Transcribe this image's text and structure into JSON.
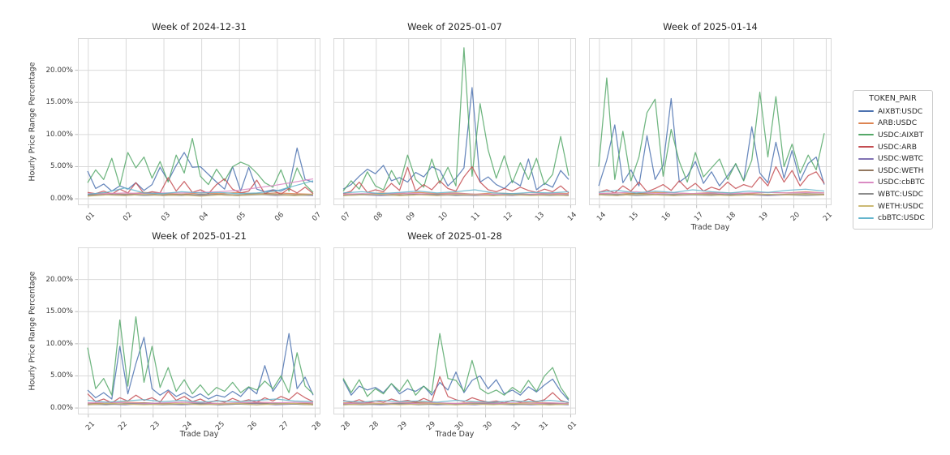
{
  "figure": {
    "background": "#ffffff",
    "ylabel": "Hourly Price Range Percentage",
    "xlabel": "Trade Day",
    "legend_title": "TOKEN_PAIR",
    "grid": true,
    "grid_color": "#d9d9d9",
    "ylim": [
      -1,
      25
    ],
    "yticks": {
      "values": [
        0,
        5,
        10,
        15,
        20
      ],
      "labels": [
        "0.00%",
        "5.00%",
        "10.00%",
        "15.00%",
        "20.00%"
      ]
    }
  },
  "tokens": [
    {
      "label": "AIXBT:USDC",
      "color": "#4c72b0"
    },
    {
      "label": "ARB:USDC",
      "color": "#dd8452"
    },
    {
      "label": "USDC:AIXBT",
      "color": "#55a868"
    },
    {
      "label": "USDC:ARB",
      "color": "#c44e52"
    },
    {
      "label": "USDC:WBTC",
      "color": "#8172b3"
    },
    {
      "label": "USDC:WETH",
      "color": "#937860"
    },
    {
      "label": "USDC:cbBTC",
      "color": "#da8bc3"
    },
    {
      "label": "WBTC:USDC",
      "color": "#8c8c8c"
    },
    {
      "label": "WETH:USDC",
      "color": "#ccb974"
    },
    {
      "label": "cbBTC:USDC",
      "color": "#64b5cd"
    }
  ],
  "chart_data": [
    {
      "type": "line",
      "title": "Week of 2024-12-31",
      "x_ticklabels": [
        "01",
        "02",
        "03",
        "04",
        "05",
        "06",
        "07"
      ],
      "show_yticklabels": true,
      "show_xlabel": false,
      "series": {
        "AIXBT:USDC": [
          4.3,
          1.6,
          2.3,
          1.2,
          2.0,
          1.5,
          2.5,
          1.3,
          2.2,
          4.9,
          2.8,
          5.2,
          7.2,
          4.9,
          5.0,
          3.8,
          2.6,
          1.5,
          5.0,
          1.2,
          4.9,
          1.5,
          1.1,
          1.4,
          1.2,
          1.8,
          7.9,
          3.0,
          2.6
        ],
        "ARB:USDC": [
          0.7,
          0.9,
          0.7,
          1.0,
          0.8,
          0.7,
          0.9,
          0.8,
          1.0,
          0.7,
          0.9,
          0.8,
          0.7
        ],
        "USDC:AIXBT": [
          2.5,
          4.5,
          3.0,
          6.3,
          2.0,
          7.2,
          4.8,
          6.5,
          3.2,
          5.8,
          2.6,
          6.8,
          4.0,
          9.4,
          3.5,
          2.2,
          4.6,
          2.8,
          5.0,
          5.7,
          5.2,
          4.0,
          2.5,
          1.8,
          4.5,
          1.2,
          4.8,
          2.2,
          1.0
        ],
        "USDC:ARB": [
          1.0,
          0.8,
          1.2,
          0.7,
          1.5,
          0.9,
          2.5,
          0.8,
          1.1,
          0.9,
          3.3,
          1.2,
          2.7,
          1.0,
          1.4,
          0.8,
          2.2,
          3.1,
          1.5,
          0.9,
          1.2,
          2.9,
          0.8,
          1.3,
          0.7,
          1.6,
          0.9,
          1.8,
          0.8
        ],
        "USDC:WBTC": [
          0.5,
          0.6,
          0.5,
          0.7,
          0.5,
          0.6,
          0.5,
          0.6,
          0.5,
          0.7,
          0.5,
          0.6,
          0.5
        ],
        "USDC:WETH": [
          0.6,
          0.7,
          0.6,
          0.8,
          0.6,
          0.7,
          0.6,
          0.7,
          0.6,
          0.8,
          0.7,
          0.6,
          0.7
        ],
        "USDC:cbBTC": [
          0.8,
          0.8,
          0.9,
          0.8,
          0.9,
          0.9,
          1.0,
          1.1,
          1.3,
          1.7,
          2.1,
          2.6,
          3.1
        ],
        "WBTC:USDC": [
          0.5,
          0.6,
          0.7,
          0.5,
          0.6,
          0.5,
          0.7,
          0.6,
          0.5,
          0.6,
          0.7,
          0.5,
          0.6
        ],
        "WETH:USDC": [
          0.4,
          0.6,
          0.5,
          0.7,
          0.5,
          0.6,
          0.4,
          0.6,
          0.5,
          0.7,
          0.6,
          0.5,
          0.7
        ],
        "cbBTC:USDC": [
          0.7,
          1.0,
          1.7,
          0.9,
          0.8,
          1.1,
          0.9,
          1.0,
          0.8,
          0.9,
          1.2,
          2.0,
          2.8
        ]
      }
    },
    {
      "type": "line",
      "title": "Week of 2025-01-07",
      "x_ticklabels": [
        "07",
        "08",
        "09",
        "10",
        "11",
        "12",
        "13",
        "14"
      ],
      "show_yticklabels": false,
      "show_xlabel": false,
      "series": {
        "AIXBT:USDC": [
          1.5,
          2.2,
          3.5,
          4.6,
          3.9,
          5.2,
          2.8,
          3.3,
          2.6,
          4.1,
          3.4,
          5.0,
          4.4,
          2.0,
          3.2,
          4.8,
          17.3,
          2.6,
          3.4,
          2.2,
          1.6,
          2.8,
          2.0,
          6.2,
          1.4,
          2.4,
          1.8,
          4.4,
          3.0
        ],
        "ARB:USDC": [
          0.8,
          0.7,
          0.9,
          0.8,
          1.0,
          0.8,
          0.9,
          0.7,
          0.9,
          0.8,
          0.7,
          0.9,
          0.8
        ],
        "USDC:AIXBT": [
          1.2,
          2.8,
          1.5,
          4.2,
          2.0,
          1.4,
          4.4,
          2.2,
          6.8,
          3.0,
          1.8,
          6.2,
          2.4,
          4.9,
          2.0,
          23.5,
          3.5,
          14.8,
          7.6,
          3.2,
          6.7,
          2.5,
          5.6,
          3.0,
          6.3,
          2.2,
          3.8,
          9.7,
          3.6
        ],
        "USDC:ARB": [
          0.8,
          1.2,
          2.6,
          1.0,
          1.4,
          1.1,
          2.4,
          1.3,
          4.9,
          1.2,
          2.2,
          1.4,
          2.8,
          1.6,
          1.2,
          3.4,
          5.0,
          2.6,
          1.4,
          1.1,
          1.6,
          1.2,
          1.8,
          1.3,
          1.0,
          1.5,
          1.1,
          2.0,
          0.9
        ],
        "USDC:WBTC": [
          0.5,
          0.6,
          0.5,
          0.6,
          0.7,
          0.5,
          0.6,
          0.5,
          0.6,
          0.5,
          0.7,
          0.6,
          0.5
        ],
        "USDC:WETH": [
          0.6,
          0.7,
          0.8,
          0.6,
          0.7,
          0.6,
          0.8,
          0.7,
          0.6,
          0.7,
          0.6,
          0.7,
          0.6
        ],
        "USDC:cbBTC": [
          0.7,
          0.8,
          0.7,
          0.9,
          0.8,
          0.7,
          0.8,
          0.7,
          0.7,
          0.7,
          0.7,
          0.8,
          0.7
        ],
        "WBTC:USDC": [
          0.5,
          0.7,
          0.6,
          0.5,
          0.6,
          0.7,
          0.5,
          0.6,
          0.5,
          0.7,
          0.6,
          0.5,
          0.6
        ],
        "WETH:USDC": [
          0.5,
          0.6,
          0.7,
          0.5,
          0.6,
          0.5,
          0.7,
          0.6,
          0.5,
          0.6,
          0.5,
          0.6,
          0.5
        ],
        "cbBTC:USDC": [
          0.9,
          1.1,
          0.8,
          1.0,
          1.2,
          0.9,
          1.1,
          1.4,
          0.9,
          0.8,
          1.0,
          0.9,
          1.1
        ]
      }
    },
    {
      "type": "line",
      "title": "Week of 2025-01-14",
      "x_ticklabels": [
        "14",
        "15",
        "16",
        "17",
        "18",
        "19",
        "20",
        "21"
      ],
      "show_yticklabels": false,
      "show_xlabel": true,
      "series": {
        "AIXBT:USDC": [
          2.0,
          6.0,
          11.5,
          2.5,
          4.5,
          2.0,
          9.8,
          3.0,
          5.2,
          15.6,
          2.6,
          3.5,
          5.8,
          2.4,
          4.2,
          2.0,
          3.6,
          5.4,
          2.8,
          11.2,
          4.0,
          2.5,
          8.8,
          3.2,
          7.5,
          2.8,
          5.5,
          6.5,
          2.2
        ],
        "ARB:USDC": [
          0.8,
          0.9,
          0.8,
          1.0,
          0.9,
          0.8,
          1.0,
          0.9,
          0.8,
          1.0,
          0.9,
          1.1,
          0.9
        ],
        "USDC:AIXBT": [
          5.0,
          18.8,
          3.0,
          10.5,
          2.8,
          6.5,
          13.4,
          15.5,
          3.5,
          10.8,
          5.8,
          2.6,
          7.2,
          3.4,
          4.8,
          6.2,
          3.0,
          5.5,
          2.8,
          6.0,
          16.6,
          6.5,
          15.9,
          5.0,
          8.5,
          4.0,
          6.8,
          4.5,
          10.2
        ],
        "USDC:ARB": [
          1.0,
          1.4,
          0.9,
          2.0,
          1.2,
          2.6,
          1.1,
          1.6,
          2.2,
          1.3,
          2.8,
          1.5,
          2.4,
          1.2,
          1.8,
          1.4,
          2.6,
          1.6,
          2.2,
          1.8,
          3.4,
          2.0,
          5.0,
          2.6,
          4.4,
          2.0,
          3.6,
          4.2,
          2.4
        ],
        "USDC:WBTC": [
          0.6,
          0.5,
          0.7,
          0.6,
          0.5,
          0.6,
          0.7,
          0.5,
          0.6,
          0.5,
          0.6,
          0.7,
          0.6
        ],
        "USDC:WETH": [
          0.7,
          0.6,
          0.8,
          0.7,
          0.6,
          0.7,
          0.8,
          0.6,
          0.7,
          0.6,
          0.7,
          0.8,
          0.7
        ],
        "USDC:cbBTC": [
          0.8,
          0.9,
          1.1,
          0.8,
          0.9,
          0.8,
          0.9,
          0.8,
          0.9,
          1.0,
          0.9,
          1.0,
          0.9
        ],
        "WBTC:USDC": [
          0.6,
          0.7,
          0.5,
          0.6,
          0.7,
          0.6,
          0.5,
          0.7,
          0.6,
          0.7,
          0.6,
          0.5,
          0.6
        ],
        "WETH:USDC": [
          0.6,
          0.5,
          0.7,
          0.6,
          0.5,
          0.7,
          0.6,
          0.5,
          0.6,
          0.7,
          0.6,
          0.7,
          0.6
        ],
        "cbBTC:USDC": [
          1.0,
          1.3,
          0.9,
          1.2,
          1.0,
          1.4,
          1.1,
          0.9,
          1.2,
          1.0,
          1.3,
          1.5,
          1.2
        ]
      }
    },
    {
      "type": "line",
      "title": "Week of 2025-01-21",
      "x_ticklabels": [
        "21",
        "22",
        "23",
        "24",
        "25",
        "26",
        "27",
        "28"
      ],
      "show_yticklabels": true,
      "show_xlabel": true,
      "series": {
        "AIXBT:USDC": [
          2.8,
          1.6,
          2.4,
          1.4,
          9.6,
          2.2,
          6.9,
          11.0,
          3.0,
          2.0,
          2.8,
          1.8,
          2.4,
          1.6,
          2.2,
          1.4,
          2.0,
          1.7,
          2.6,
          1.8,
          3.2,
          2.2,
          6.6,
          2.6,
          4.4,
          11.6,
          3.0,
          4.8,
          2.0
        ],
        "ARB:USDC": [
          0.8,
          0.7,
          0.9,
          0.8,
          0.7,
          0.9,
          0.8,
          0.7,
          0.8,
          0.9,
          0.8,
          0.7,
          0.8
        ],
        "USDC:AIXBT": [
          9.4,
          3.0,
          4.6,
          2.0,
          13.7,
          3.4,
          14.2,
          4.0,
          9.6,
          3.2,
          6.3,
          2.6,
          4.4,
          2.2,
          3.6,
          2.0,
          3.2,
          2.6,
          4.0,
          2.4,
          3.3,
          2.8,
          4.2,
          3.0,
          5.0,
          2.4,
          8.6,
          3.4,
          2.2
        ],
        "USDC:ARB": [
          2.2,
          1.0,
          1.4,
          0.8,
          1.6,
          1.1,
          2.0,
          1.2,
          1.6,
          0.9,
          2.6,
          1.2,
          1.8,
          1.0,
          1.4,
          0.8,
          1.2,
          0.9,
          1.5,
          1.0,
          1.3,
          0.9,
          1.6,
          1.1,
          1.8,
          1.3,
          2.4,
          1.6,
          1.0
        ],
        "USDC:WBTC": [
          0.5,
          0.6,
          0.5,
          0.7,
          0.6,
          0.5,
          0.6,
          0.5,
          0.6,
          0.7,
          0.5,
          0.6,
          0.5
        ],
        "USDC:WETH": [
          0.6,
          0.7,
          0.6,
          0.8,
          0.7,
          0.6,
          0.7,
          0.6,
          0.7,
          0.8,
          0.6,
          0.7,
          0.6
        ],
        "USDC:cbBTC": [
          0.8,
          0.9,
          0.8,
          0.7,
          0.8,
          0.9,
          0.8,
          0.7,
          0.8,
          0.9,
          0.8,
          0.9,
          0.8
        ],
        "WBTC:USDC": [
          0.6,
          0.5,
          0.7,
          0.6,
          0.5,
          0.6,
          0.7,
          0.5,
          0.6,
          0.5,
          0.7,
          0.6,
          0.5
        ],
        "WETH:USDC": [
          0.5,
          0.7,
          0.6,
          0.5,
          0.6,
          0.7,
          0.5,
          0.6,
          0.7,
          0.5,
          0.6,
          0.7,
          0.5
        ],
        "cbBTC:USDC": [
          1.2,
          0.9,
          1.1,
          1.3,
          1.0,
          1.2,
          0.9,
          1.1,
          1.0,
          1.2,
          1.4,
          1.1,
          1.0
        ]
      }
    },
    {
      "type": "line",
      "title": "Week of 2025-01-28",
      "x_ticklabels": [
        "28",
        "28",
        "29",
        "29",
        "30",
        "30",
        "31",
        "31",
        "01"
      ],
      "show_yticklabels": false,
      "show_xlabel": true,
      "series": {
        "AIXBT:USDC": [
          4.4,
          2.0,
          3.4,
          2.8,
          3.2,
          2.4,
          3.8,
          2.2,
          3.0,
          2.6,
          3.4,
          2.0,
          4.0,
          2.8,
          5.6,
          2.4,
          4.3,
          5.0,
          3.0,
          4.4,
          2.2,
          2.8,
          2.0,
          3.3,
          2.5,
          3.6,
          4.5,
          2.6,
          1.2
        ],
        "ARB:USDC": [
          0.8,
          0.9,
          0.7,
          0.8,
          0.9,
          0.8,
          0.7,
          0.9,
          0.8,
          0.7,
          0.9,
          0.8,
          0.7
        ],
        "USDC:AIXBT": [
          4.6,
          2.4,
          4.4,
          1.8,
          3.0,
          2.2,
          3.8,
          2.6,
          4.4,
          2.0,
          3.4,
          2.4,
          11.6,
          4.6,
          4.3,
          2.6,
          7.4,
          3.0,
          2.2,
          2.8,
          2.0,
          3.2,
          2.4,
          4.3,
          2.6,
          5.0,
          6.3,
          3.2,
          1.4
        ],
        "USDC:ARB": [
          1.2,
          0.9,
          1.3,
          0.8,
          1.1,
          0.9,
          1.4,
          1.0,
          1.2,
          0.9,
          1.5,
          1.0,
          4.9,
          1.8,
          1.3,
          1.0,
          1.6,
          1.2,
          0.9,
          1.1,
          0.8,
          1.2,
          0.9,
          1.4,
          1.0,
          1.3,
          2.4,
          1.2,
          0.8
        ],
        "USDC:WBTC": [
          0.5,
          0.6,
          0.5,
          0.6,
          0.7,
          0.5,
          0.6,
          0.5,
          0.7,
          0.6,
          0.5,
          0.6,
          0.5
        ],
        "USDC:WETH": [
          0.6,
          0.7,
          0.6,
          0.7,
          0.8,
          0.6,
          0.7,
          0.6,
          0.8,
          0.7,
          0.6,
          0.7,
          0.6
        ],
        "USDC:cbBTC": [
          0.7,
          0.8,
          0.7,
          0.8,
          0.7,
          0.8,
          0.7,
          0.8,
          0.7,
          0.8,
          0.7,
          0.8,
          0.7
        ],
        "WBTC:USDC": [
          0.6,
          0.5,
          0.6,
          0.7,
          0.5,
          0.6,
          0.5,
          0.7,
          0.6,
          0.5,
          0.6,
          0.5,
          0.6
        ],
        "WETH:USDC": [
          0.5,
          0.6,
          0.7,
          0.5,
          0.6,
          0.7,
          0.5,
          0.6,
          0.5,
          0.7,
          0.6,
          0.5,
          0.6
        ],
        "cbBTC:USDC": [
          1.1,
          0.9,
          1.2,
          1.0,
          1.1,
          0.9,
          1.2,
          1.0,
          0.9,
          1.1,
          1.0,
          1.2,
          0.9
        ]
      }
    }
  ]
}
